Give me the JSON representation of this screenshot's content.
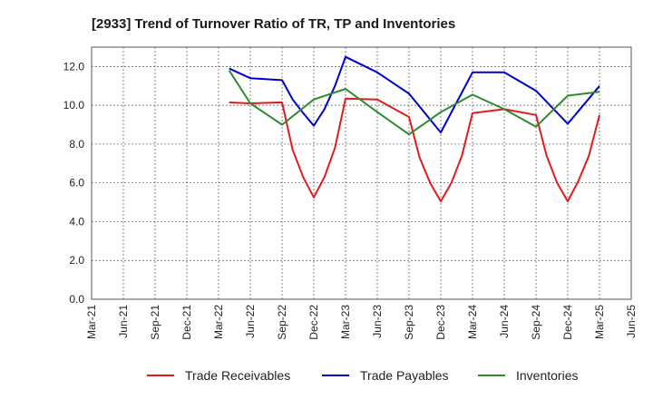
{
  "chart_data": {
    "type": "line",
    "title": "[2933]  Trend of Turnover Ratio of TR, TP and Inventories",
    "xlabel": "",
    "ylabel": "",
    "x_ticks": [
      "Mar-21",
      "Jun-21",
      "Sep-21",
      "Dec-21",
      "Mar-22",
      "Jun-22",
      "Sep-22",
      "Dec-22",
      "Mar-23",
      "Jun-23",
      "Sep-23",
      "Dec-23",
      "Mar-24",
      "Jun-24",
      "Sep-24",
      "Dec-24",
      "Mar-25",
      "Jun-25"
    ],
    "ylim": [
      0,
      13
    ],
    "y_ticks": [
      "0.0",
      "2.0",
      "4.0",
      "6.0",
      "8.0",
      "10.0",
      "12.0"
    ],
    "y_tick_values": [
      0,
      2,
      4,
      6,
      8,
      10,
      12
    ],
    "grid": true,
    "legend_position": "bottom",
    "x": [
      "Apr-22",
      "May-22",
      "Jun-22",
      "Jul-22",
      "Aug-22",
      "Sep-22",
      "Oct-22",
      "Nov-22",
      "Dec-22",
      "Jan-23",
      "Feb-23",
      "Mar-23",
      "Apr-23",
      "May-23",
      "Jun-23",
      "Jul-23",
      "Aug-23",
      "Sep-23",
      "Oct-23",
      "Nov-23",
      "Dec-23",
      "Jan-24",
      "Feb-24",
      "Mar-24",
      "Apr-24",
      "May-24",
      "Jun-24",
      "Jul-24",
      "Aug-24",
      "Sep-24",
      "Oct-24",
      "Nov-24",
      "Dec-24",
      "Jan-25",
      "Feb-25",
      "Mar-25"
    ],
    "series": [
      {
        "name": "Trade Receivables",
        "color": "#e31a1c",
        "values": [
          10.15,
          null,
          10.1,
          null,
          null,
          10.15,
          7.7,
          6.3,
          5.25,
          6.3,
          7.8,
          10.35,
          null,
          null,
          10.3,
          null,
          null,
          9.4,
          7.3,
          6.0,
          5.05,
          6.0,
          7.4,
          9.6,
          null,
          null,
          9.8,
          null,
          null,
          9.5,
          7.4,
          6.0,
          5.05,
          6.1,
          7.4,
          9.5
        ]
      },
      {
        "name": "Trade Payables",
        "color": "#0000cc",
        "values": [
          11.9,
          null,
          11.4,
          null,
          null,
          11.3,
          10.3,
          9.6,
          8.95,
          9.8,
          11.0,
          12.5,
          null,
          null,
          11.7,
          null,
          null,
          10.6,
          null,
          null,
          8.6,
          null,
          null,
          11.7,
          null,
          null,
          11.7,
          null,
          null,
          10.75,
          null,
          null,
          9.05,
          null,
          null,
          11.0
        ]
      },
      {
        "name": "Inventories",
        "color": "#2e8b2e",
        "values": [
          11.8,
          null,
          10.1,
          null,
          null,
          9.0,
          null,
          null,
          10.3,
          null,
          null,
          10.85,
          null,
          null,
          9.65,
          null,
          null,
          8.5,
          null,
          null,
          9.65,
          null,
          null,
          10.55,
          null,
          null,
          9.8,
          null,
          null,
          8.9,
          null,
          null,
          10.5,
          null,
          null,
          10.7
        ]
      }
    ]
  }
}
